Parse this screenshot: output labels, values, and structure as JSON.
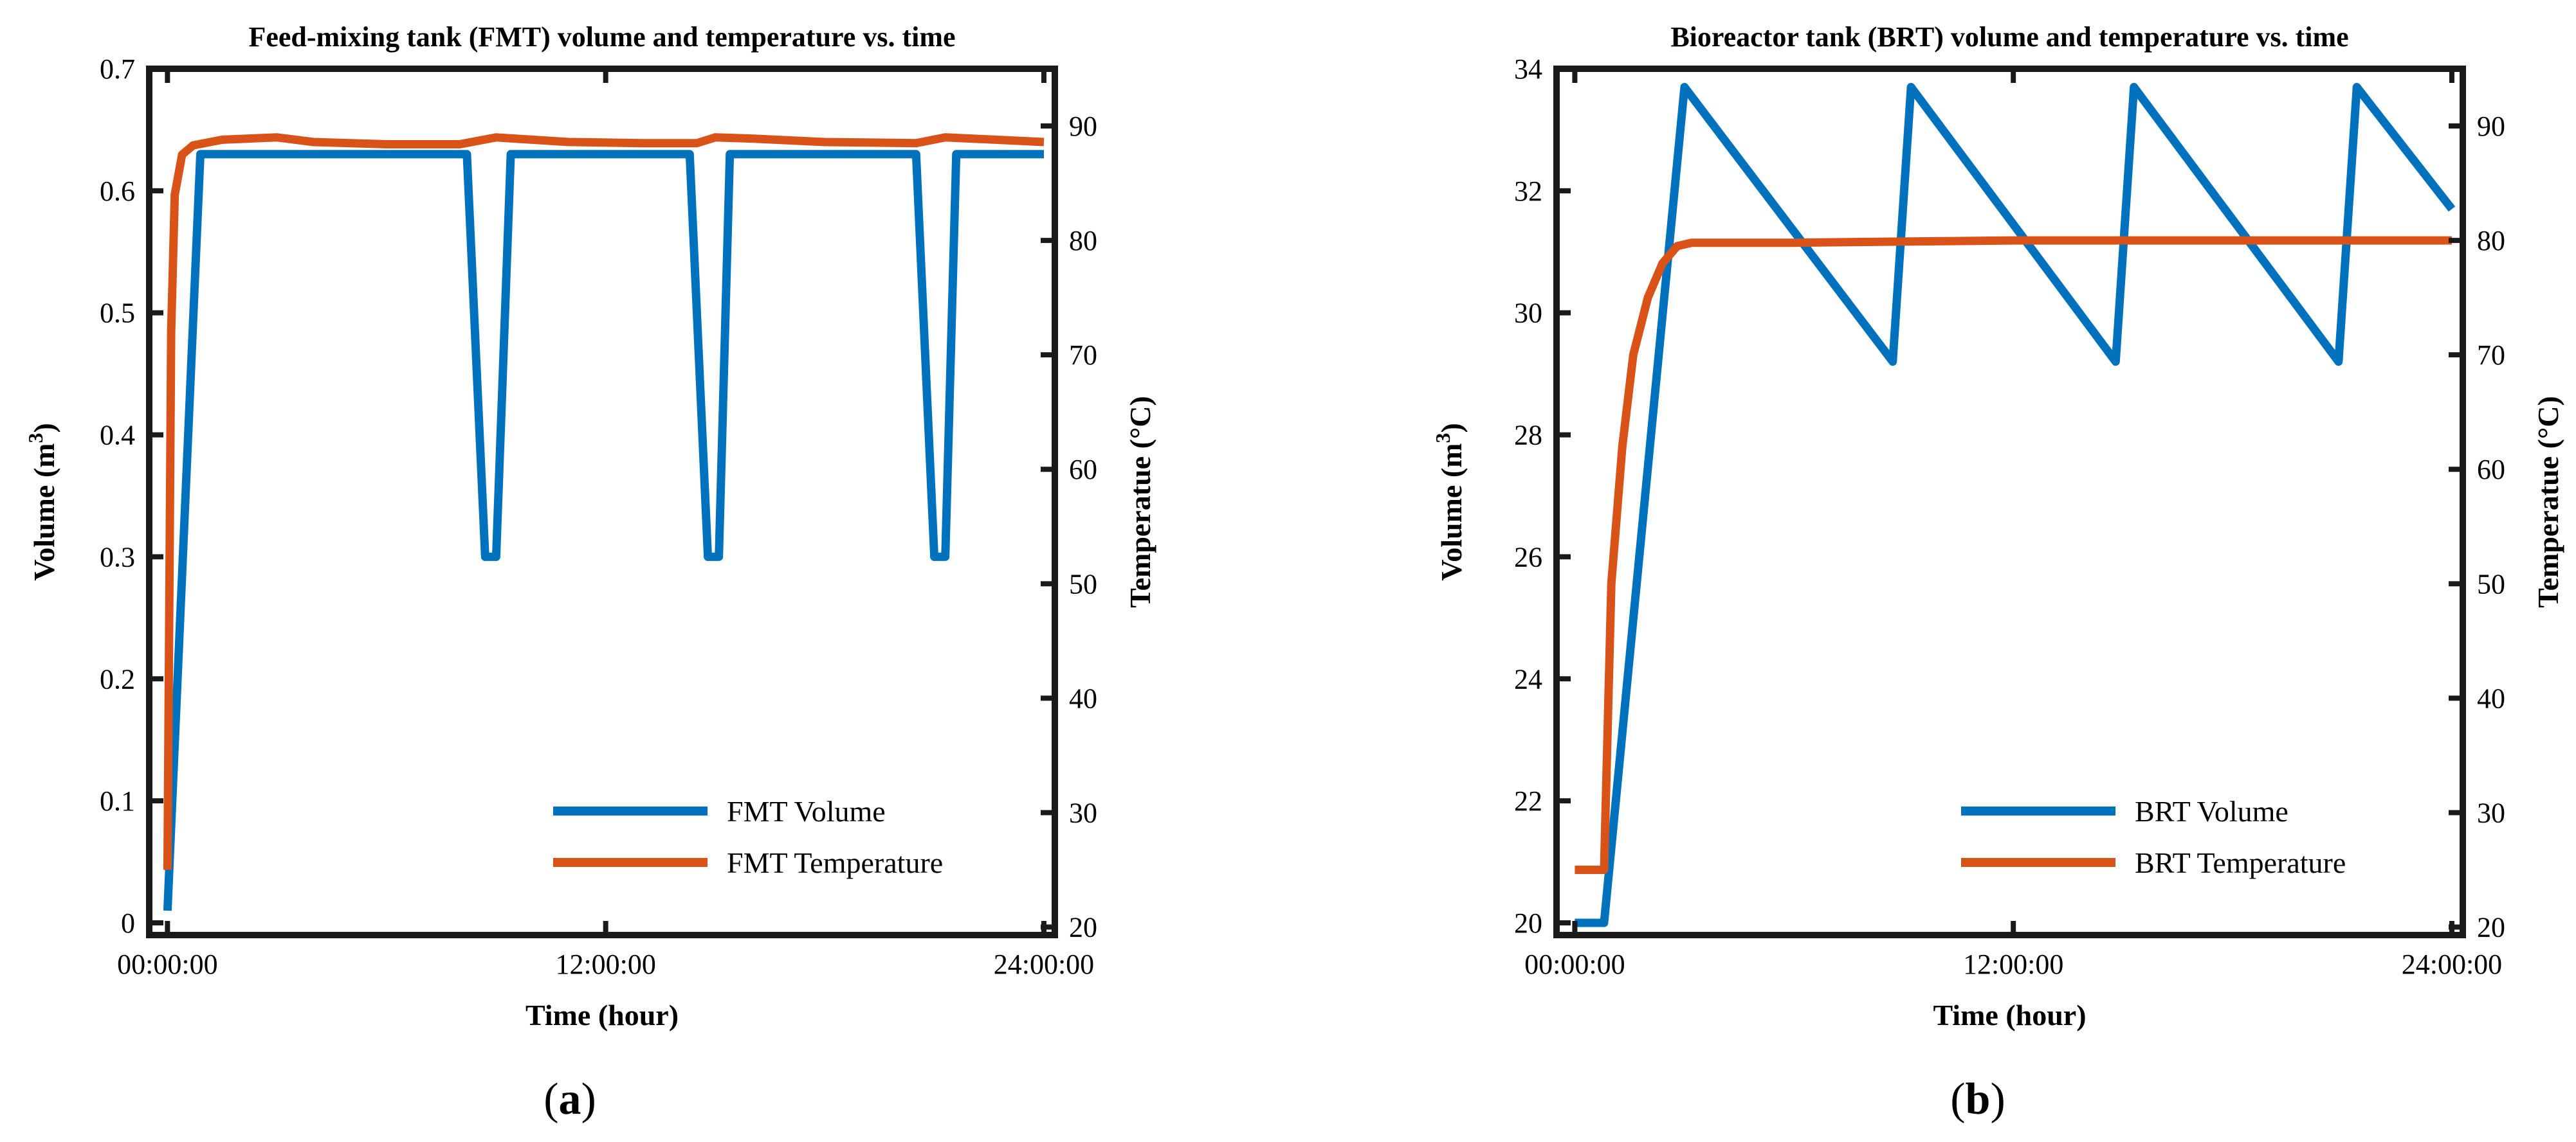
{
  "chart_data": [
    {
      "type": "line",
      "title": "Feed-mixing tank (FMT) volume and temperature vs. time",
      "panel_label": "a",
      "xlabel": "Time (hour)",
      "ylabel_left_prefix": "Volume (m",
      "ylabel_left_sup": "3",
      "ylabel_left_suffix": ")",
      "ylabel_right": "Temperatue (°C)",
      "x_unit": "hours",
      "xlim": [
        -0.5,
        24.3
      ],
      "xticks": [
        {
          "value": 0,
          "label": "00:00:00"
        },
        {
          "value": 12,
          "label": "12:00:00"
        },
        {
          "value": 24,
          "label": "24:00:00"
        }
      ],
      "ylim_left": [
        -0.01,
        0.7
      ],
      "yticks_left": [
        {
          "value": 0,
          "label": "0"
        },
        {
          "value": 0.1,
          "label": "0.1"
        },
        {
          "value": 0.2,
          "label": "0.2"
        },
        {
          "value": 0.3,
          "label": "0.3"
        },
        {
          "value": 0.4,
          "label": "0.4"
        },
        {
          "value": 0.5,
          "label": "0.5"
        },
        {
          "value": 0.6,
          "label": "0.6"
        },
        {
          "value": 0.7,
          "label": "0.7"
        }
      ],
      "ylim_right": [
        19.3,
        95
      ],
      "yticks_right": [
        {
          "value": 20,
          "label": "20"
        },
        {
          "value": 30,
          "label": "30"
        },
        {
          "value": 40,
          "label": "40"
        },
        {
          "value": 50,
          "label": "50"
        },
        {
          "value": 60,
          "label": "60"
        },
        {
          "value": 70,
          "label": "70"
        },
        {
          "value": 80,
          "label": "80"
        },
        {
          "value": 90,
          "label": "90"
        }
      ],
      "grid": false,
      "legend_position": "bottom-right",
      "series": [
        {
          "name": "FMT Volume",
          "axis": "left",
          "color": "#0072BD",
          "x": [
            0,
            0.9,
            3,
            8.2,
            8.7,
            9.0,
            9.4,
            14.3,
            14.8,
            15.1,
            15.4,
            20.5,
            21.0,
            21.3,
            21.6,
            24
          ],
          "y": [
            0.01,
            0.63,
            0.63,
            0.63,
            0.3,
            0.3,
            0.63,
            0.63,
            0.3,
            0.3,
            0.63,
            0.63,
            0.3,
            0.3,
            0.63,
            0.63
          ]
        },
        {
          "name": "FMT Temperature",
          "axis": "right",
          "color": "#D95319",
          "x": [
            0,
            0.1,
            0.2,
            0.4,
            0.7,
            1.5,
            3,
            4,
            6,
            8,
            9.0,
            9.5,
            11,
            13,
            14.5,
            15.0,
            16,
            18,
            20.5,
            21.3,
            22,
            24
          ],
          "y": [
            25,
            72,
            84,
            87.5,
            88.3,
            88.8,
            89.0,
            88.6,
            88.4,
            88.4,
            89.0,
            88.9,
            88.6,
            88.5,
            88.5,
            89.0,
            88.9,
            88.6,
            88.5,
            89.0,
            88.9,
            88.6
          ]
        }
      ]
    },
    {
      "type": "line",
      "title": "Bioreactor tank (BRT) volume and temperature vs. time",
      "panel_label": "b",
      "xlabel": "Time (hour)",
      "ylabel_left_prefix": "Volume (m",
      "ylabel_left_sup": "3",
      "ylabel_left_suffix": ")",
      "ylabel_right": "Temperatue (°C)",
      "x_unit": "hours",
      "xlim": [
        -0.5,
        24.3
      ],
      "xticks": [
        {
          "value": 0,
          "label": "00:00:00"
        },
        {
          "value": 12,
          "label": "12:00:00"
        },
        {
          "value": 24,
          "label": "24:00:00"
        }
      ],
      "ylim_left": [
        19.8,
        34
      ],
      "yticks_left": [
        {
          "value": 20,
          "label": "20"
        },
        {
          "value": 22,
          "label": "22"
        },
        {
          "value": 24,
          "label": "24"
        },
        {
          "value": 26,
          "label": "26"
        },
        {
          "value": 28,
          "label": "28"
        },
        {
          "value": 30,
          "label": "30"
        },
        {
          "value": 32,
          "label": "32"
        },
        {
          "value": 34,
          "label": "34"
        }
      ],
      "ylim_right": [
        19.3,
        95
      ],
      "yticks_right": [
        {
          "value": 20,
          "label": "20"
        },
        {
          "value": 30,
          "label": "30"
        },
        {
          "value": 40,
          "label": "40"
        },
        {
          "value": 50,
          "label": "50"
        },
        {
          "value": 60,
          "label": "60"
        },
        {
          "value": 70,
          "label": "70"
        },
        {
          "value": 80,
          "label": "80"
        },
        {
          "value": 90,
          "label": "90"
        }
      ],
      "grid": false,
      "legend_position": "bottom-right",
      "series": [
        {
          "name": "BRT Volume",
          "axis": "left",
          "color": "#0072BD",
          "x": [
            0,
            0.8,
            3.0,
            8.7,
            9.2,
            14.8,
            15.3,
            20.9,
            21.4,
            24
          ],
          "y": [
            20,
            20,
            33.7,
            29.2,
            33.7,
            29.2,
            33.7,
            29.2,
            33.7,
            31.7
          ]
        },
        {
          "name": "BRT Temperature",
          "axis": "right",
          "color": "#D95319",
          "x": [
            0,
            0.8,
            1.0,
            1.3,
            1.6,
            2.0,
            2.4,
            2.8,
            3.2,
            6,
            12,
            18,
            24
          ],
          "y": [
            25,
            25,
            50,
            62,
            70,
            75,
            78,
            79.5,
            79.8,
            79.8,
            80.0,
            80.0,
            80.0
          ]
        }
      ]
    }
  ]
}
